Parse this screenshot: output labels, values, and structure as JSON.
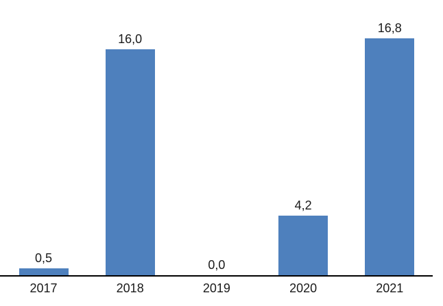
{
  "chart_data": {
    "type": "bar",
    "categories": [
      "2017",
      "2018",
      "2019",
      "2020",
      "2021"
    ],
    "values": [
      0.5,
      16.0,
      0.0,
      4.2,
      16.8
    ],
    "value_labels": [
      "0,5",
      "16,0",
      "0,0",
      "4,2",
      "16,8"
    ],
    "title": "",
    "xlabel": "",
    "ylabel": "",
    "ylim": [
      0,
      16.8
    ],
    "grid": false,
    "legend": false,
    "decimal_separator": ",",
    "bar_color": "#4E80BD",
    "axis_color": "#000000",
    "label_color": "#1A1A1A",
    "background_color": "#FFFFFF"
  }
}
